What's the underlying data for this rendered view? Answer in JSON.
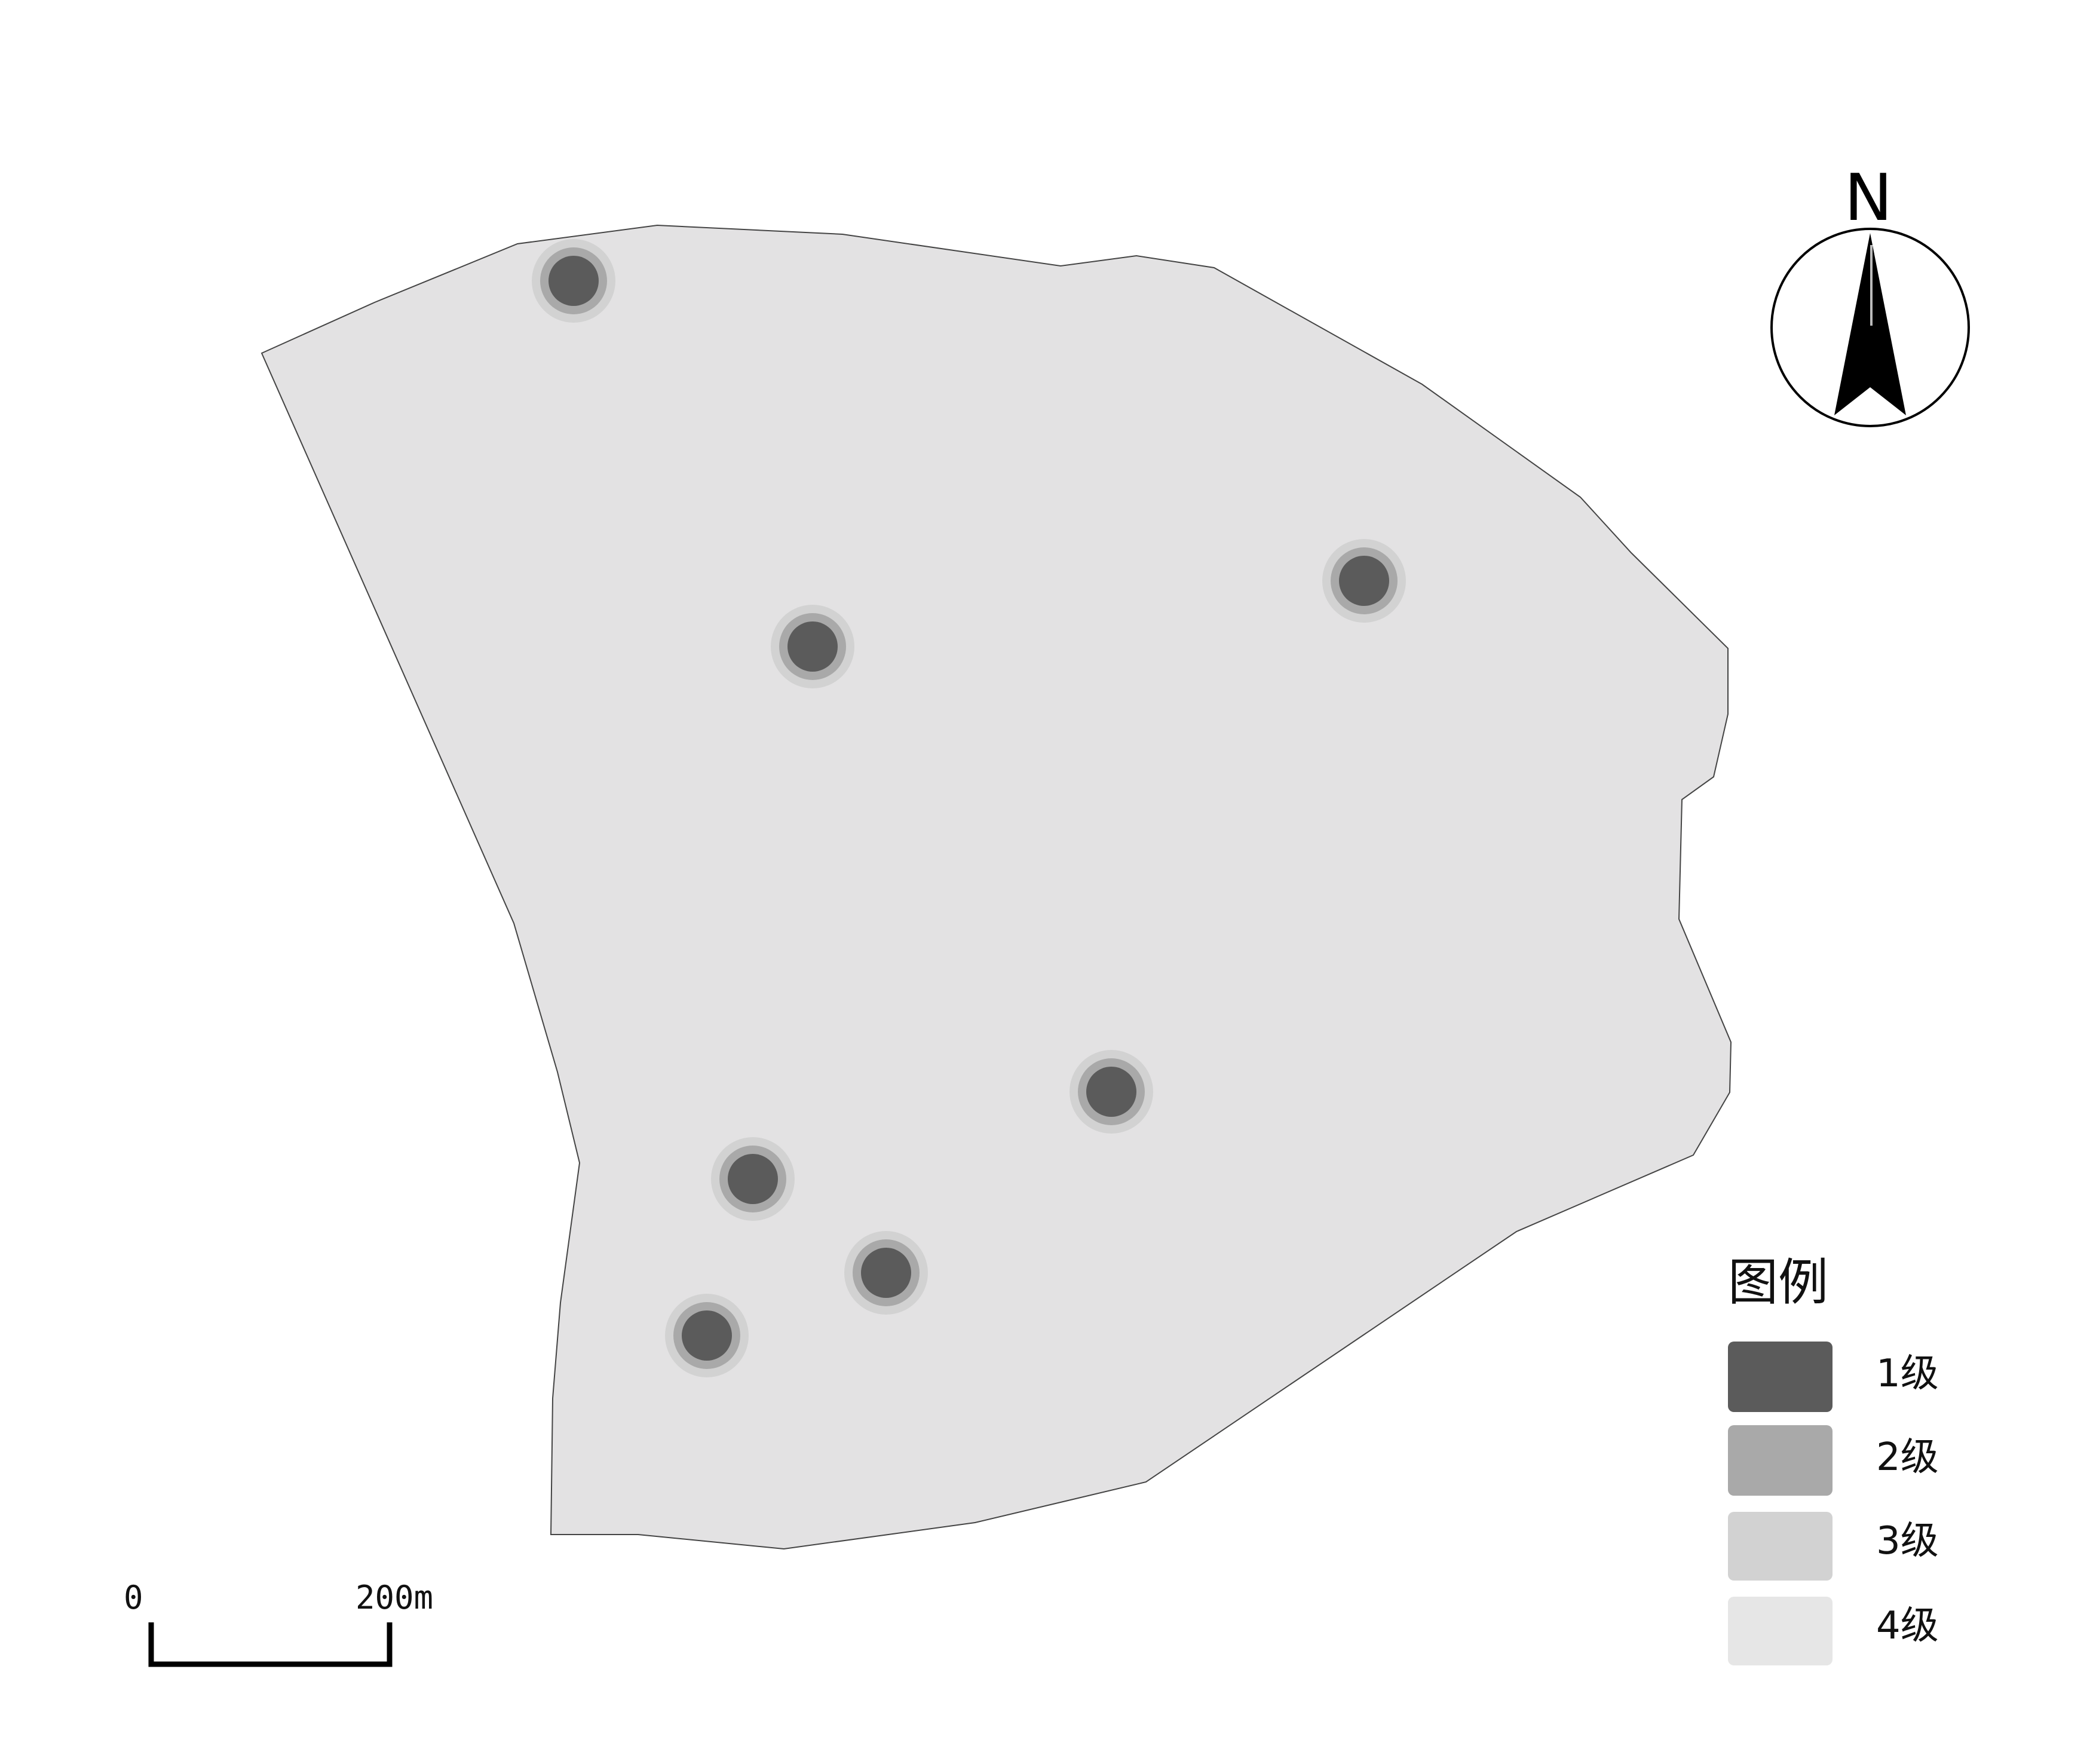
{
  "map": {
    "background_color": "#ffffff",
    "boundary_fill": "#e3e2e3",
    "boundary_stroke": "#444444",
    "hotspot_levels": [
      "1级",
      "2级",
      "3级"
    ],
    "hotspot_count": 7
  },
  "north_arrow": {
    "label": "N",
    "icon": "north-arrow-icon"
  },
  "legend": {
    "title": "图例",
    "items": [
      {
        "label": "1级",
        "color": "#5b5b5b"
      },
      {
        "label": "2级",
        "color": "#a9a9a9"
      },
      {
        "label": "3级",
        "color": "#d2d2d2"
      },
      {
        "label": "4级",
        "color": "#e6e6e6"
      }
    ]
  },
  "scale_bar": {
    "start_label": "0",
    "end_label": "200m"
  }
}
